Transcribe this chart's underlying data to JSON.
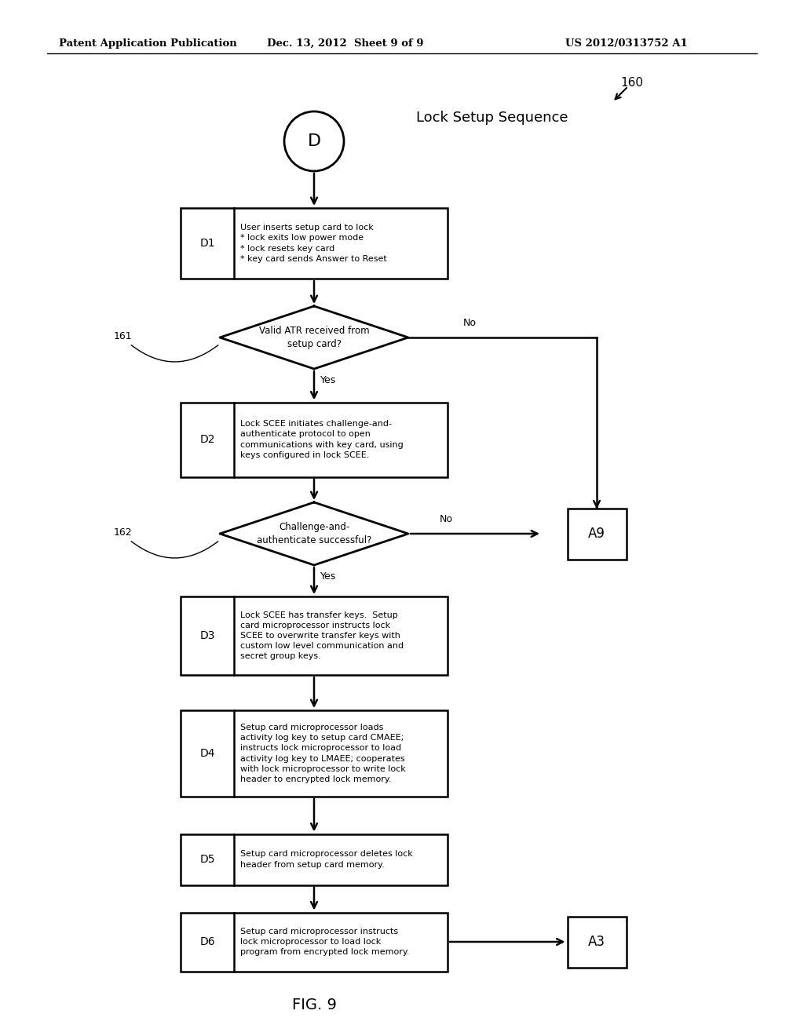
{
  "title_header": "Patent Application Publication",
  "date_header": "Dec. 13, 2012  Sheet 9 of 9",
  "patent_header": "US 2012/0313752 A1",
  "figure_label": "FIG. 9",
  "diagram_title": "Lock Setup Sequence",
  "diagram_ref": "160",
  "start_label": "D",
  "bg_color": "#ffffff",
  "line_color": "#000000",
  "text_color": "#000000",
  "d1_text": "User inserts setup card to lock\n* lock exits low power mode\n* lock resets key card\n* key card sends Answer to Reset",
  "d2_text": "Lock SCEE initiates challenge-and-\nauthenticate protocol to open\ncommunications with key card, using\nkeys configured in lock SCEE.",
  "d3_text": "Lock SCEE has transfer keys.  Setup\ncard microprocessor instructs lock\nSCEE to overwrite transfer keys with\ncustom low level communication and\nsecret group keys.",
  "d4_text": "Setup card microprocessor loads\nactivity log key to setup card CMAEE;\ninstructs lock microprocessor to load\nactivity log key to LMAEE; cooperates\nwith lock microprocessor to write lock\nheader to encrypted lock memory.",
  "d5_text": "Setup card microprocessor deletes lock\nheader from setup card memory.",
  "d6_text": "Setup card microprocessor instructs\nlock microprocessor to load lock\nprogram from encrypted lock memory.",
  "dia1_text": "Valid ATR received from\nsetup card?",
  "dia2_text": "Challenge-and-\nauthenticate successful?",
  "label_161": "161",
  "label_162": "162"
}
